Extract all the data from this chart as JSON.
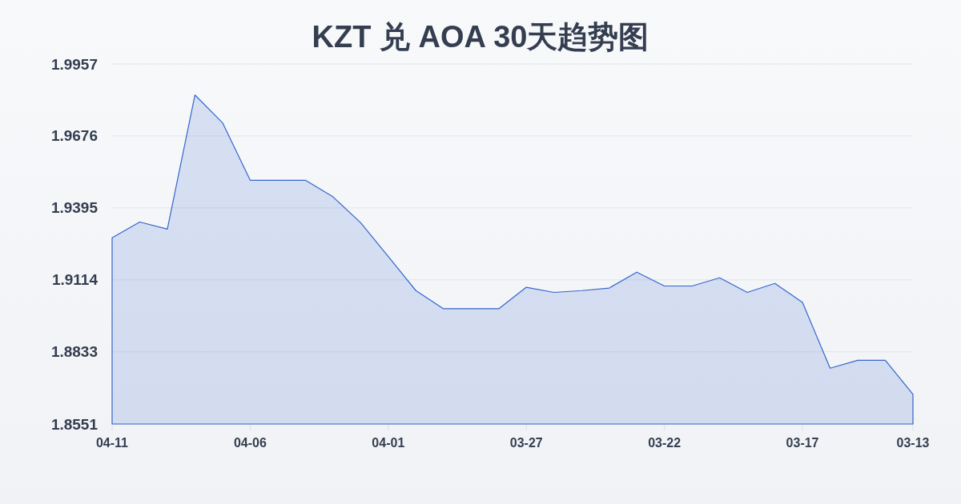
{
  "chart_data": {
    "type": "area",
    "title": "KZT 兑 AOA 30天趋势图",
    "categories": [
      "04-11",
      null,
      null,
      null,
      null,
      "04-06",
      null,
      null,
      null,
      null,
      "04-01",
      null,
      null,
      null,
      null,
      "03-27",
      null,
      null,
      null,
      null,
      "03-22",
      null,
      null,
      null,
      null,
      "03-17",
      null,
      null,
      null,
      "03-13"
    ],
    "values": [
      1.9278,
      1.934,
      1.9312,
      1.9836,
      1.9727,
      1.9503,
      1.9503,
      1.9503,
      1.9438,
      1.9337,
      1.9205,
      1.9072,
      1.9001,
      1.9001,
      1.9001,
      1.9085,
      1.9065,
      1.9072,
      1.9082,
      1.9144,
      1.909,
      1.909,
      1.9122,
      1.9065,
      1.91,
      1.9026,
      1.8769,
      1.88,
      1.88,
      1.8667
    ],
    "color": "#3366cc",
    "ylim": [
      1.8551,
      1.9957
    ],
    "yticks": [
      1.8551,
      1.8833,
      1.9114,
      1.9395,
      1.9676,
      1.9957
    ],
    "grid": "y"
  }
}
